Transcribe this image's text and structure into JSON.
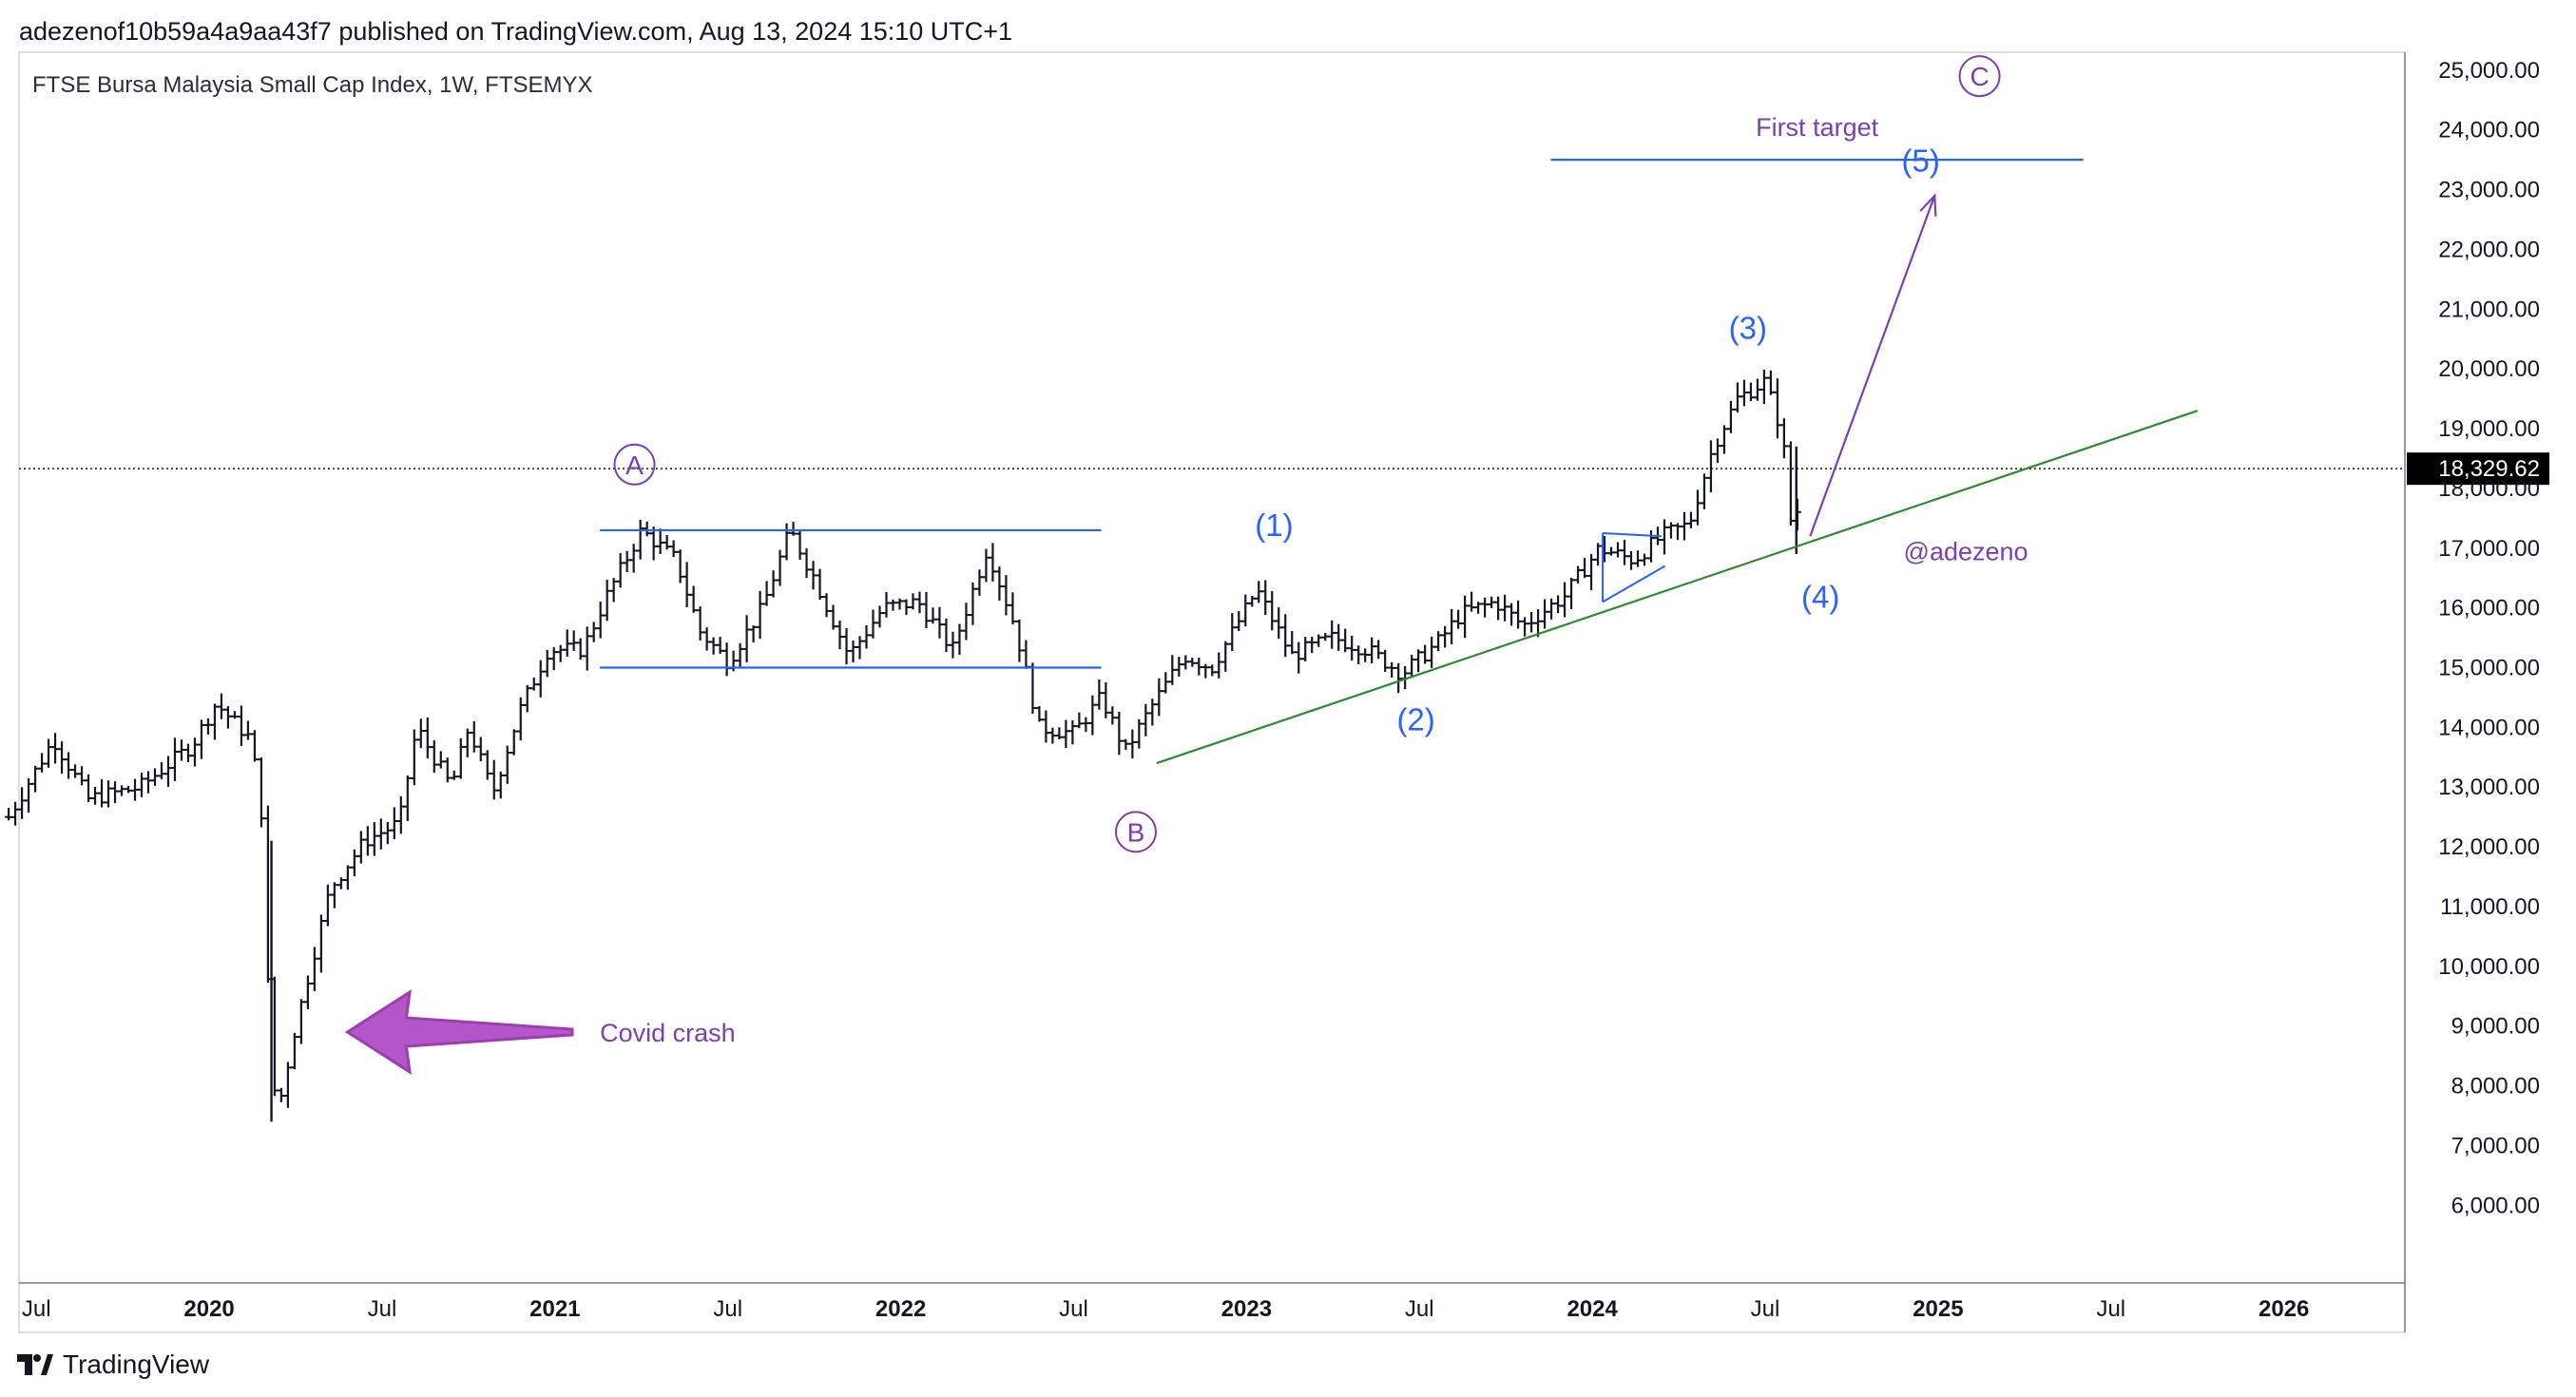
{
  "header": {
    "published_line": "adezenof10b59a4a9aa43f7 published on TradingView.com, Aug 13, 2024 15:10 UTC+1",
    "symbol_title": "FTSE Bursa Malaysia Small Cap Index, 1W, FTSEMYX"
  },
  "footer": {
    "brand": "TradingView"
  },
  "colors": {
    "bars": "#131722",
    "blue_lines": "#2962ff",
    "trend_line": "#2e8b2e",
    "purple": "#7b3fb5",
    "wave_blue": "#2962ff",
    "crash_arrow": "#b455c9",
    "price_tag_bg": "#000000",
    "grid_border": "#d1d4dc"
  },
  "chart_data": {
    "type": "candlestick-ohlc",
    "title": "FTSE Bursa Malaysia Small Cap Index, 1W, FTSEMYX",
    "current_price": "18,329.62",
    "x_axis_labels": [
      {
        "label": "Jul",
        "date": 2019.5,
        "bold": false
      },
      {
        "label": "2020",
        "date": 2020.0,
        "bold": true
      },
      {
        "label": "Jul",
        "date": 2020.5,
        "bold": false
      },
      {
        "label": "2021",
        "date": 2021.0,
        "bold": true
      },
      {
        "label": "Jul",
        "date": 2021.5,
        "bold": false
      },
      {
        "label": "2022",
        "date": 2022.0,
        "bold": true
      },
      {
        "label": "Jul",
        "date": 2022.5,
        "bold": false
      },
      {
        "label": "2023",
        "date": 2023.0,
        "bold": true
      },
      {
        "label": "Jul",
        "date": 2023.5,
        "bold": false
      },
      {
        "label": "2024",
        "date": 2024.0,
        "bold": true
      },
      {
        "label": "Jul",
        "date": 2024.5,
        "bold": false
      },
      {
        "label": "2025",
        "date": 2025.0,
        "bold": true
      },
      {
        "label": "Jul",
        "date": 2025.5,
        "bold": false
      },
      {
        "label": "2026",
        "date": 2026.0,
        "bold": true
      }
    ],
    "y_axis_labels": [
      "25,000.00",
      "24,000.00",
      "23,000.00",
      "22,000.00",
      "21,000.00",
      "20,000.00",
      "19,000.00",
      "18,000.00",
      "17,000.00",
      "16,000.00",
      "15,000.00",
      "14,000.00",
      "13,000.00",
      "12,000.00",
      "11,000.00",
      "10,000.00",
      "9,000.00",
      "8,000.00",
      "7,000.00",
      "6,000.00"
    ],
    "y_ticks": [
      25000,
      24000,
      23000,
      22000,
      21000,
      20000,
      19000,
      18000,
      17000,
      16000,
      15000,
      14000,
      13000,
      12000,
      11000,
      10000,
      9000,
      8000,
      7000,
      6000
    ],
    "x_range": [
      2019.45,
      2026.35
    ],
    "y_range": [
      4700,
      25300
    ],
    "price_anchors": [
      [
        2019.42,
        12500
      ],
      [
        2019.55,
        13800
      ],
      [
        2019.65,
        12800
      ],
      [
        2019.8,
        13000
      ],
      [
        2019.95,
        13700
      ],
      [
        2020.02,
        14400
      ],
      [
        2020.12,
        13800
      ],
      [
        2020.15,
        12700
      ],
      [
        2020.18,
        8200
      ],
      [
        2020.2,
        7600
      ],
      [
        2020.25,
        9000
      ],
      [
        2020.35,
        11300
      ],
      [
        2020.45,
        12100
      ],
      [
        2020.55,
        12400
      ],
      [
        2020.6,
        14000
      ],
      [
        2020.7,
        13000
      ],
      [
        2020.75,
        14000
      ],
      [
        2020.82,
        12900
      ],
      [
        2020.9,
        14300
      ],
      [
        2020.98,
        15300
      ],
      [
        2021.08,
        15300
      ],
      [
        2021.15,
        16200
      ],
      [
        2021.25,
        17300
      ],
      [
        2021.35,
        16800
      ],
      [
        2021.42,
        15600
      ],
      [
        2021.5,
        15100
      ],
      [
        2021.6,
        16000
      ],
      [
        2021.68,
        17300
      ],
      [
        2021.75,
        16500
      ],
      [
        2021.85,
        15200
      ],
      [
        2021.95,
        16000
      ],
      [
        2022.05,
        16100
      ],
      [
        2022.15,
        15300
      ],
      [
        2022.25,
        17000
      ],
      [
        2022.33,
        15700
      ],
      [
        2022.4,
        14000
      ],
      [
        2022.5,
        13900
      ],
      [
        2022.58,
        14500
      ],
      [
        2022.65,
        13600
      ],
      [
        2022.72,
        14300
      ],
      [
        2022.82,
        15200
      ],
      [
        2022.9,
        15000
      ],
      [
        2023.03,
        16300
      ],
      [
        2023.13,
        15200
      ],
      [
        2023.25,
        15500
      ],
      [
        2023.35,
        15300
      ],
      [
        2023.45,
        14900
      ],
      [
        2023.55,
        15400
      ],
      [
        2023.62,
        15900
      ],
      [
        2023.72,
        16100
      ],
      [
        2023.8,
        15700
      ],
      [
        2023.92,
        16200
      ],
      [
        2024.02,
        17000
      ],
      [
        2024.12,
        16800
      ],
      [
        2024.2,
        17200
      ],
      [
        2024.28,
        17400
      ],
      [
        2024.35,
        18700
      ],
      [
        2024.42,
        19500
      ],
      [
        2024.5,
        19800
      ],
      [
        2024.55,
        18900
      ],
      [
        2024.58,
        17100
      ],
      [
        2024.61,
        18300
      ]
    ],
    "annotations": {
      "consolidation_top": {
        "value": 17300,
        "x_start": 2021.13,
        "x_end": 2022.58
      },
      "consolidation_bottom": {
        "value": 15000,
        "x_start": 2021.13,
        "x_end": 2022.58
      },
      "first_target": {
        "label": "First target",
        "value": 23500,
        "x_start": 2023.88,
        "x_end": 2025.42
      },
      "trend_line": {
        "from": [
          2022.74,
          13400
        ],
        "to": [
          2025.75,
          19300
        ]
      },
      "triangle": [
        [
          2024.03,
          17250
        ],
        [
          2024.2,
          17200
        ],
        [
          2024.03,
          16100
        ],
        [
          2024.21,
          16700
        ]
      ],
      "projection_arrow": {
        "from": [
          2024.63,
          17200
        ],
        "to": [
          2024.99,
          22900
        ]
      },
      "crash_arrow_label": "Covid crash",
      "author_tag": "@adezeno",
      "major_waves": [
        {
          "label": "A",
          "date": 2021.23,
          "value": 18400
        },
        {
          "label": "B",
          "date": 2022.68,
          "value": 12250
        },
        {
          "label": "C",
          "date": 2025.12,
          "value": 24900
        }
      ],
      "minor_waves": [
        {
          "label": "(1)",
          "date": 2023.08,
          "value": 17200
        },
        {
          "label": "(2)",
          "date": 2023.49,
          "value": 13950
        },
        {
          "label": "(3)",
          "date": 2024.45,
          "value": 20500
        },
        {
          "label": "(4)",
          "date": 2024.66,
          "value": 16000
        },
        {
          "label": "(5)",
          "date": 2024.95,
          "value": 23300
        }
      ]
    }
  }
}
